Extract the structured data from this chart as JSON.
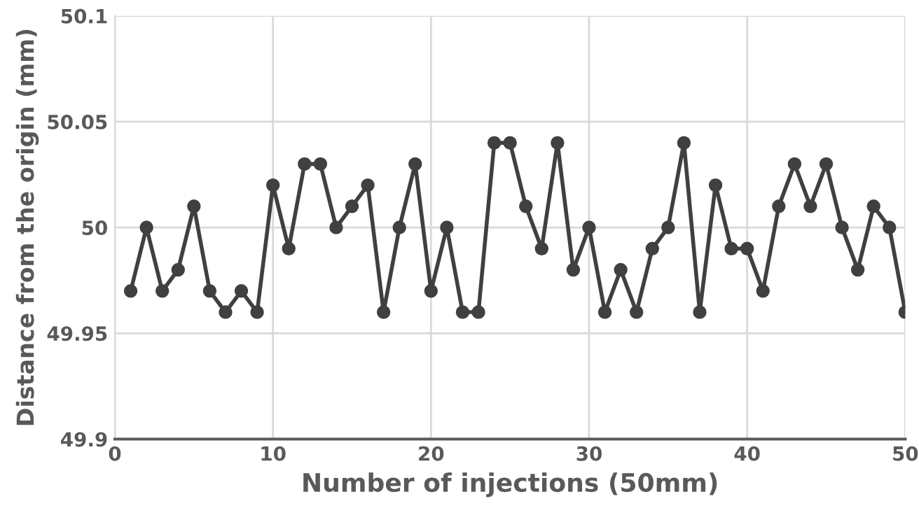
{
  "chart_data": {
    "type": "line",
    "xlabel": "Number of injections (50mm)",
    "ylabel": "Distance from the origin (mm)",
    "x": [
      1,
      2,
      3,
      4,
      5,
      6,
      7,
      8,
      9,
      10,
      11,
      12,
      13,
      14,
      15,
      16,
      17,
      18,
      19,
      20,
      21,
      22,
      23,
      24,
      25,
      26,
      27,
      28,
      29,
      30,
      31,
      32,
      33,
      34,
      35,
      36,
      37,
      38,
      39,
      40,
      41,
      42,
      43,
      44,
      45,
      46,
      47,
      48,
      49,
      50
    ],
    "series": [
      {
        "color": "#404040",
        "values": [
          49.97,
          50,
          49.97,
          49.98,
          50.01,
          49.97,
          49.96,
          49.97,
          49.96,
          50.02,
          49.99,
          50.03,
          50.03,
          50,
          50.01,
          50.02,
          49.96,
          50,
          50.03,
          49.97,
          50,
          49.96,
          49.96,
          50.04,
          50.04,
          50.01,
          49.99,
          50.04,
          49.98,
          50,
          49.96,
          49.98,
          49.96,
          49.99,
          50,
          50.04,
          49.96,
          50.02,
          49.99,
          49.99,
          49.97,
          50.01,
          50.03,
          50.01,
          50.03,
          50,
          49.98,
          50.01,
          50,
          49.96
        ]
      }
    ],
    "xlim": [
      0,
      50
    ],
    "xticks": [
      0,
      10,
      20,
      30,
      40,
      50
    ],
    "ylim": [
      49.9,
      50.1
    ],
    "yticks": [
      49.9,
      49.95,
      50,
      50.05,
      50.1
    ],
    "grid": true,
    "marker": "circle",
    "line_style": "solid"
  }
}
